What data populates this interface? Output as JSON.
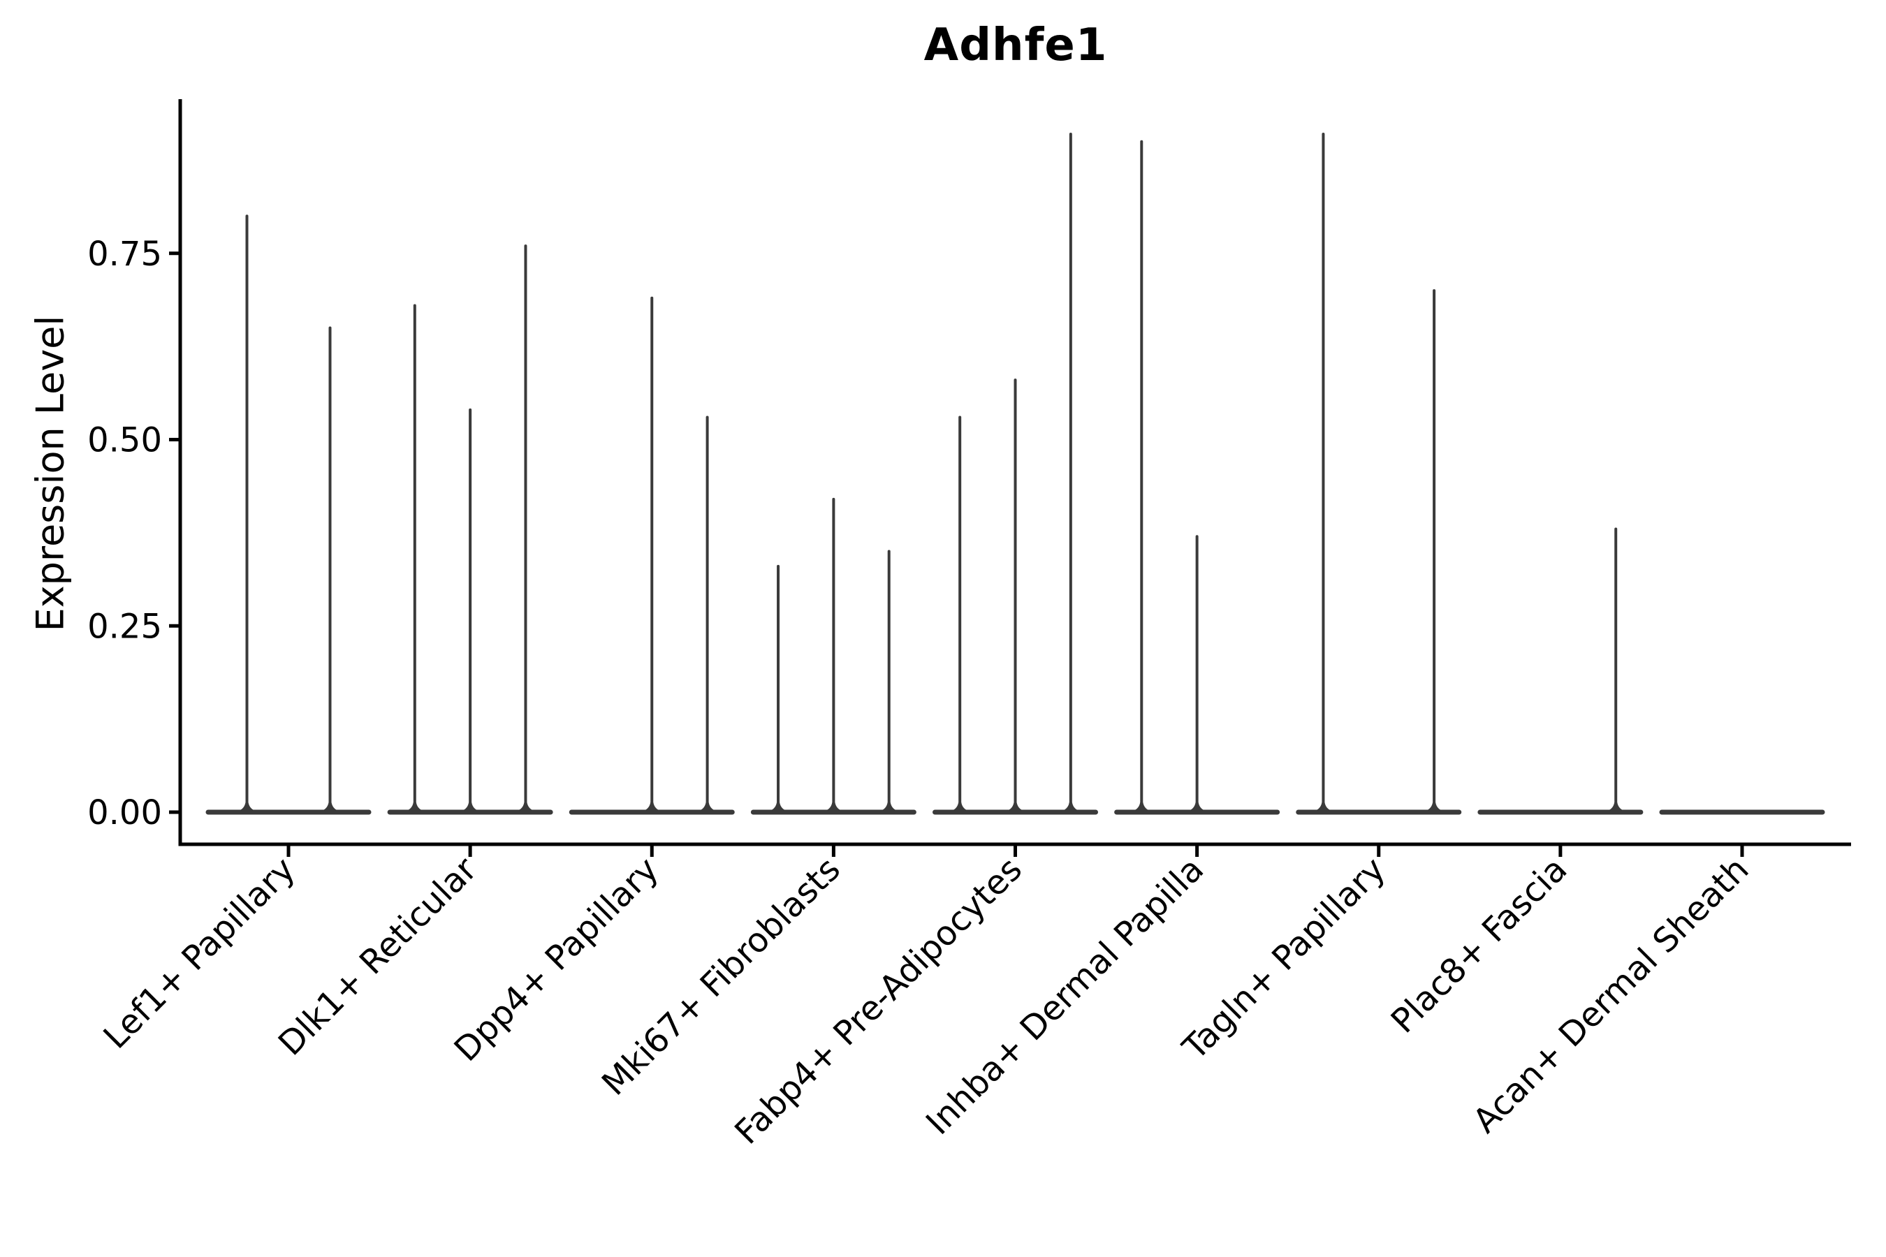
{
  "chart_data": {
    "type": "violin",
    "title": "Adhfe1",
    "ylabel": "Expression Level",
    "xlabel": "",
    "grid": false,
    "legend": "none",
    "ylim": [
      0,
      0.96
    ],
    "yticks": [
      {
        "value": 0.0,
        "label": "0.00"
      },
      {
        "value": 0.25,
        "label": "0.25"
      },
      {
        "value": 0.5,
        "label": "0.50"
      },
      {
        "value": 0.75,
        "label": "0.75"
      }
    ],
    "x_tick_rotation": 45,
    "categories": [
      "Lef1+ Papillary",
      "Dlk1+ Reticular",
      "Dpp4+ Papillary",
      "Mki67+ Fibroblasts",
      "Fabp4+ Pre-Adipocytes",
      "Inhba+ Dermal Papilla",
      "Tagln+ Papillary",
      "Plac8+ Fascia",
      "Acan+ Dermal Sheath"
    ],
    "description": "Each category shows 2-3 dodged violins collapsed to a flat baseline at 0 with a thin spike reaching the maximum expression level of sparse expressing cells.",
    "groups": [
      {
        "category": "Lef1+ Papillary",
        "spike_max_values": [
          0.8,
          0.65
        ]
      },
      {
        "category": "Dlk1+ Reticular",
        "spike_max_values": [
          0.68,
          0.54,
          0.76
        ]
      },
      {
        "category": "Dpp4+ Papillary",
        "spike_max_values": [
          0,
          0.69,
          0.53
        ]
      },
      {
        "category": "Mki67+ Fibroblasts",
        "spike_max_values": [
          0.33,
          0.42,
          0.35
        ]
      },
      {
        "category": "Fabp4+ Pre-Adipocytes",
        "spike_max_values": [
          0.53,
          0.58,
          0.91
        ]
      },
      {
        "category": "Inhba+ Dermal Papilla",
        "spike_max_values": [
          0.9,
          0.37,
          0
        ]
      },
      {
        "category": "Tagln+ Papillary",
        "spike_max_values": [
          0.91,
          0,
          0.7
        ]
      },
      {
        "category": "Plac8+ Fascia",
        "spike_max_values": [
          0,
          0,
          0.38
        ]
      },
      {
        "category": "Acan+ Dermal Sheath",
        "spike_max_values": [
          0,
          0,
          0
        ]
      }
    ],
    "colors": {
      "violin": "#3a3a3a",
      "axis": "#000000",
      "text": "#000000",
      "background": "#ffffff"
    }
  }
}
